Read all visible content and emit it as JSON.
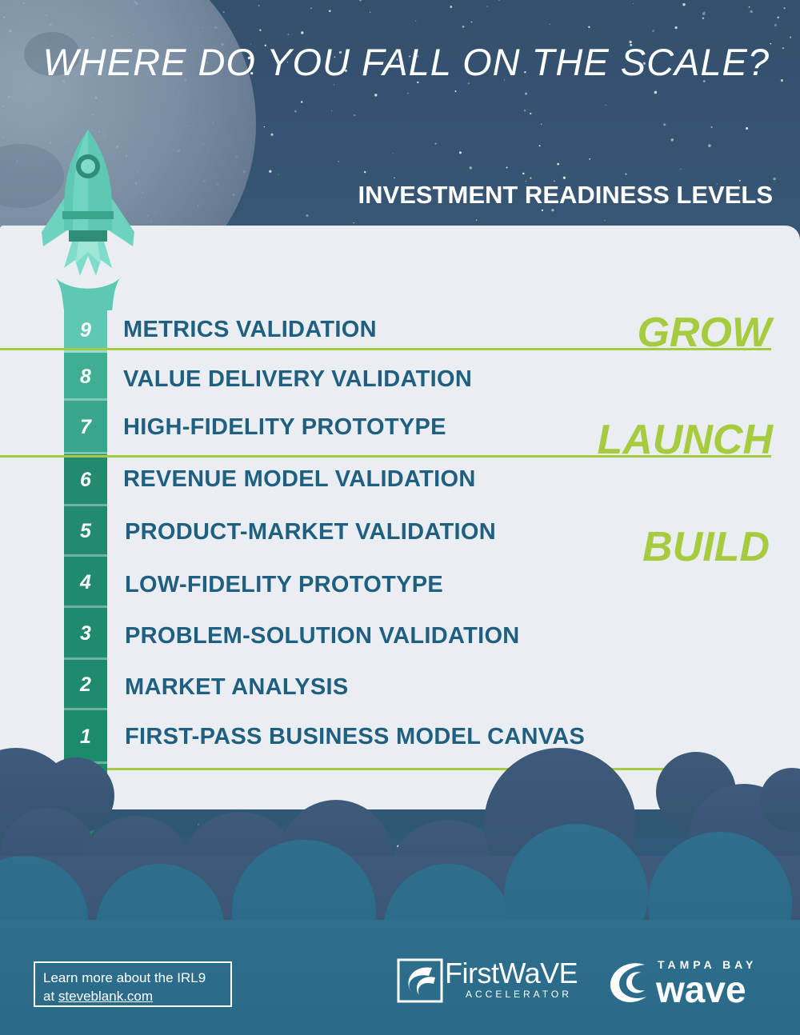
{
  "header": {
    "title": "WHERE DO YOU FALL ON THE SCALE?",
    "subtitle": "INVESTMENT READINESS LEVELS"
  },
  "levels": [
    {
      "number": "9",
      "label": "METRICS VALIDATION"
    },
    {
      "number": "8",
      "label": "VALUE DELIVERY VALIDATION"
    },
    {
      "number": "7",
      "label": "HIGH-FIDELITY PROTOTYPE"
    },
    {
      "number": "6",
      "label": "REVENUE MODEL VALIDATION"
    },
    {
      "number": "5",
      "label": "PRODUCT-MARKET VALIDATION"
    },
    {
      "number": "4",
      "label": "LOW-FIDELITY PROTOTYPE"
    },
    {
      "number": "3",
      "label": "PROBLEM-SOLUTION VALIDATION"
    },
    {
      "number": "2",
      "label": "MARKET ANALYSIS"
    },
    {
      "number": "1",
      "label": "FIRST-PASS BUSINESS MODEL CANVAS"
    }
  ],
  "stages": {
    "grow": "GROW",
    "launch": "LAUNCH",
    "build": "BUILD"
  },
  "footer": {
    "learn_line1": "Learn more about the IRL9",
    "learn_prefix": "at",
    "learn_link": "steveblank.com",
    "firstwave_name": "FirstWaVE",
    "firstwave_sub": "ACCELERATOR",
    "tbw_top": "TAMPA BAY",
    "tbw_main": "wave"
  },
  "colors": {
    "accent_green": "#a6cb3e",
    "text_blue": "#1f5f80",
    "panel": "#eaedf1",
    "rocket_teal": "#5fc8b4"
  },
  "icons": {
    "rocket": "rocket-icon",
    "moon": "moon-illustration",
    "clouds": "cloud-illustration",
    "firstwave_logo": "firstwave-logo-icon",
    "tbw_logo": "tampa-bay-wave-logo-icon"
  }
}
